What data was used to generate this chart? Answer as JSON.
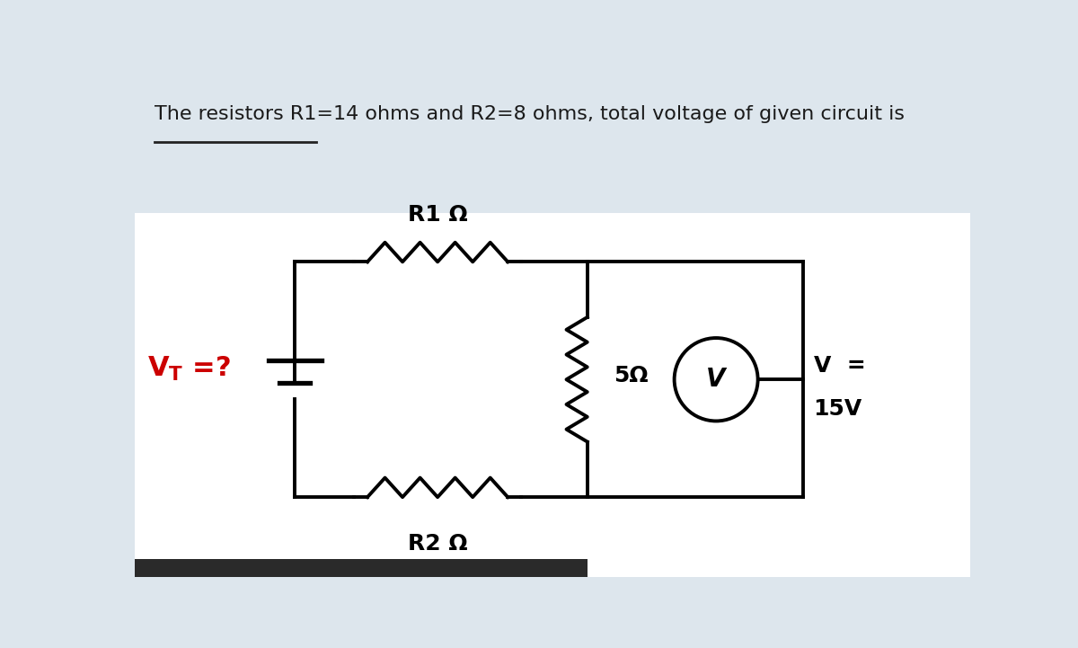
{
  "title_text": "The resistors R1=14 ohms and R2=8 ohms, total voltage of given circuit is",
  "title_bg": "#dde6ed",
  "circuit_bg": "#ffffff",
  "outer_bg": "#dde6ed",
  "line_color": "#000000",
  "line_width": 2.8,
  "vt_color": "#cc0000",
  "r1_label": "R1 Ω",
  "r2_label": "R2 Ω",
  "r3_label": "5Ω",
  "voltmeter_label": "V",
  "v_label": "V  =",
  "v_value": "15V",
  "underline_color": "#222222",
  "title_fontsize": 16,
  "label_fontsize": 18,
  "vt_fontsize": 22
}
